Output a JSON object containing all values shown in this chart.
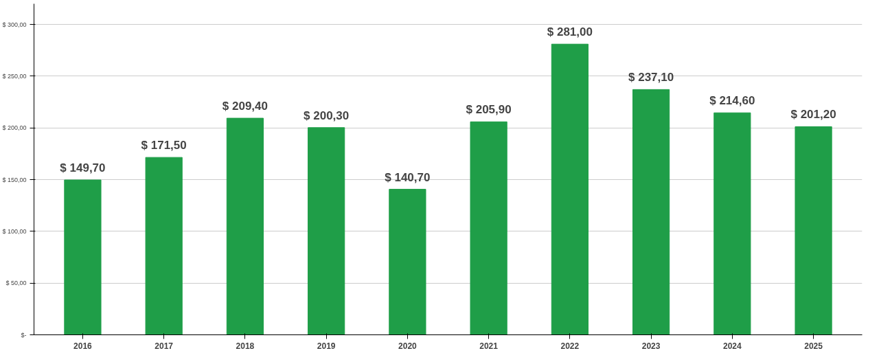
{
  "chart_data": {
    "type": "bar",
    "categories": [
      "2016",
      "2017",
      "2018",
      "2019",
      "2020",
      "2021",
      "2022",
      "2023",
      "2024",
      "2025"
    ],
    "values": [
      149.7,
      171.5,
      209.4,
      200.3,
      140.7,
      205.9,
      281.0,
      237.1,
      214.6,
      201.2
    ],
    "color": "#1f9e48",
    "value_labels": [
      "$ 149,70",
      "$ 171,50",
      "$ 209,40",
      "$ 200,30",
      "$ 140,70",
      "$ 205,90",
      "$ 281,00",
      "$ 237,10",
      "$ 214,60",
      "$ 201,20"
    ],
    "ylim": [
      0,
      320
    ],
    "yticks": [
      {
        "value": 0,
        "label": "$-"
      },
      {
        "value": 50,
        "label": "$ 50,00"
      },
      {
        "value": 100,
        "label": "$ 100,00"
      },
      {
        "value": 150,
        "label": "$ 150,00"
      },
      {
        "value": 200,
        "label": "$ 200,00"
      },
      {
        "value": 250,
        "label": "$ 250,00"
      },
      {
        "value": 300,
        "label": "$ 300,00"
      }
    ],
    "grid": "y"
  }
}
